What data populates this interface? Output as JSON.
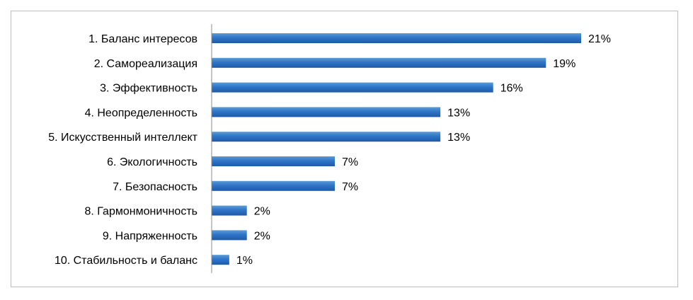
{
  "chart_data": {
    "type": "bar",
    "orientation": "horizontal",
    "categories": [
      "1. Баланс интересов",
      "2. Самореализация",
      "3. Эффективность",
      "4. Неопределенность",
      "5. Искусственный интеллект",
      "6. Экологичность",
      "7. Безопасность",
      "8. Гармонмоничность",
      "9. Напряженность",
      "10. Стабильность и баланс"
    ],
    "values": [
      21,
      19,
      16,
      13,
      13,
      7,
      7,
      2,
      2,
      1
    ],
    "value_labels": [
      "21%",
      "19%",
      "16%",
      "13%",
      "13%",
      "7%",
      "7%",
      "2%",
      "2%",
      "1%"
    ],
    "unit": "%",
    "title": "",
    "xlabel": "",
    "ylabel": "",
    "xlim": [
      0,
      21
    ],
    "grid": false,
    "legend": "none",
    "colors": {
      "bar_light": "#5b9bd5",
      "bar_mid": "#2e74c8",
      "bar_dark": "#1f5aa6",
      "axis": "#8c8c8c",
      "frame": "#bdbdbd"
    }
  }
}
